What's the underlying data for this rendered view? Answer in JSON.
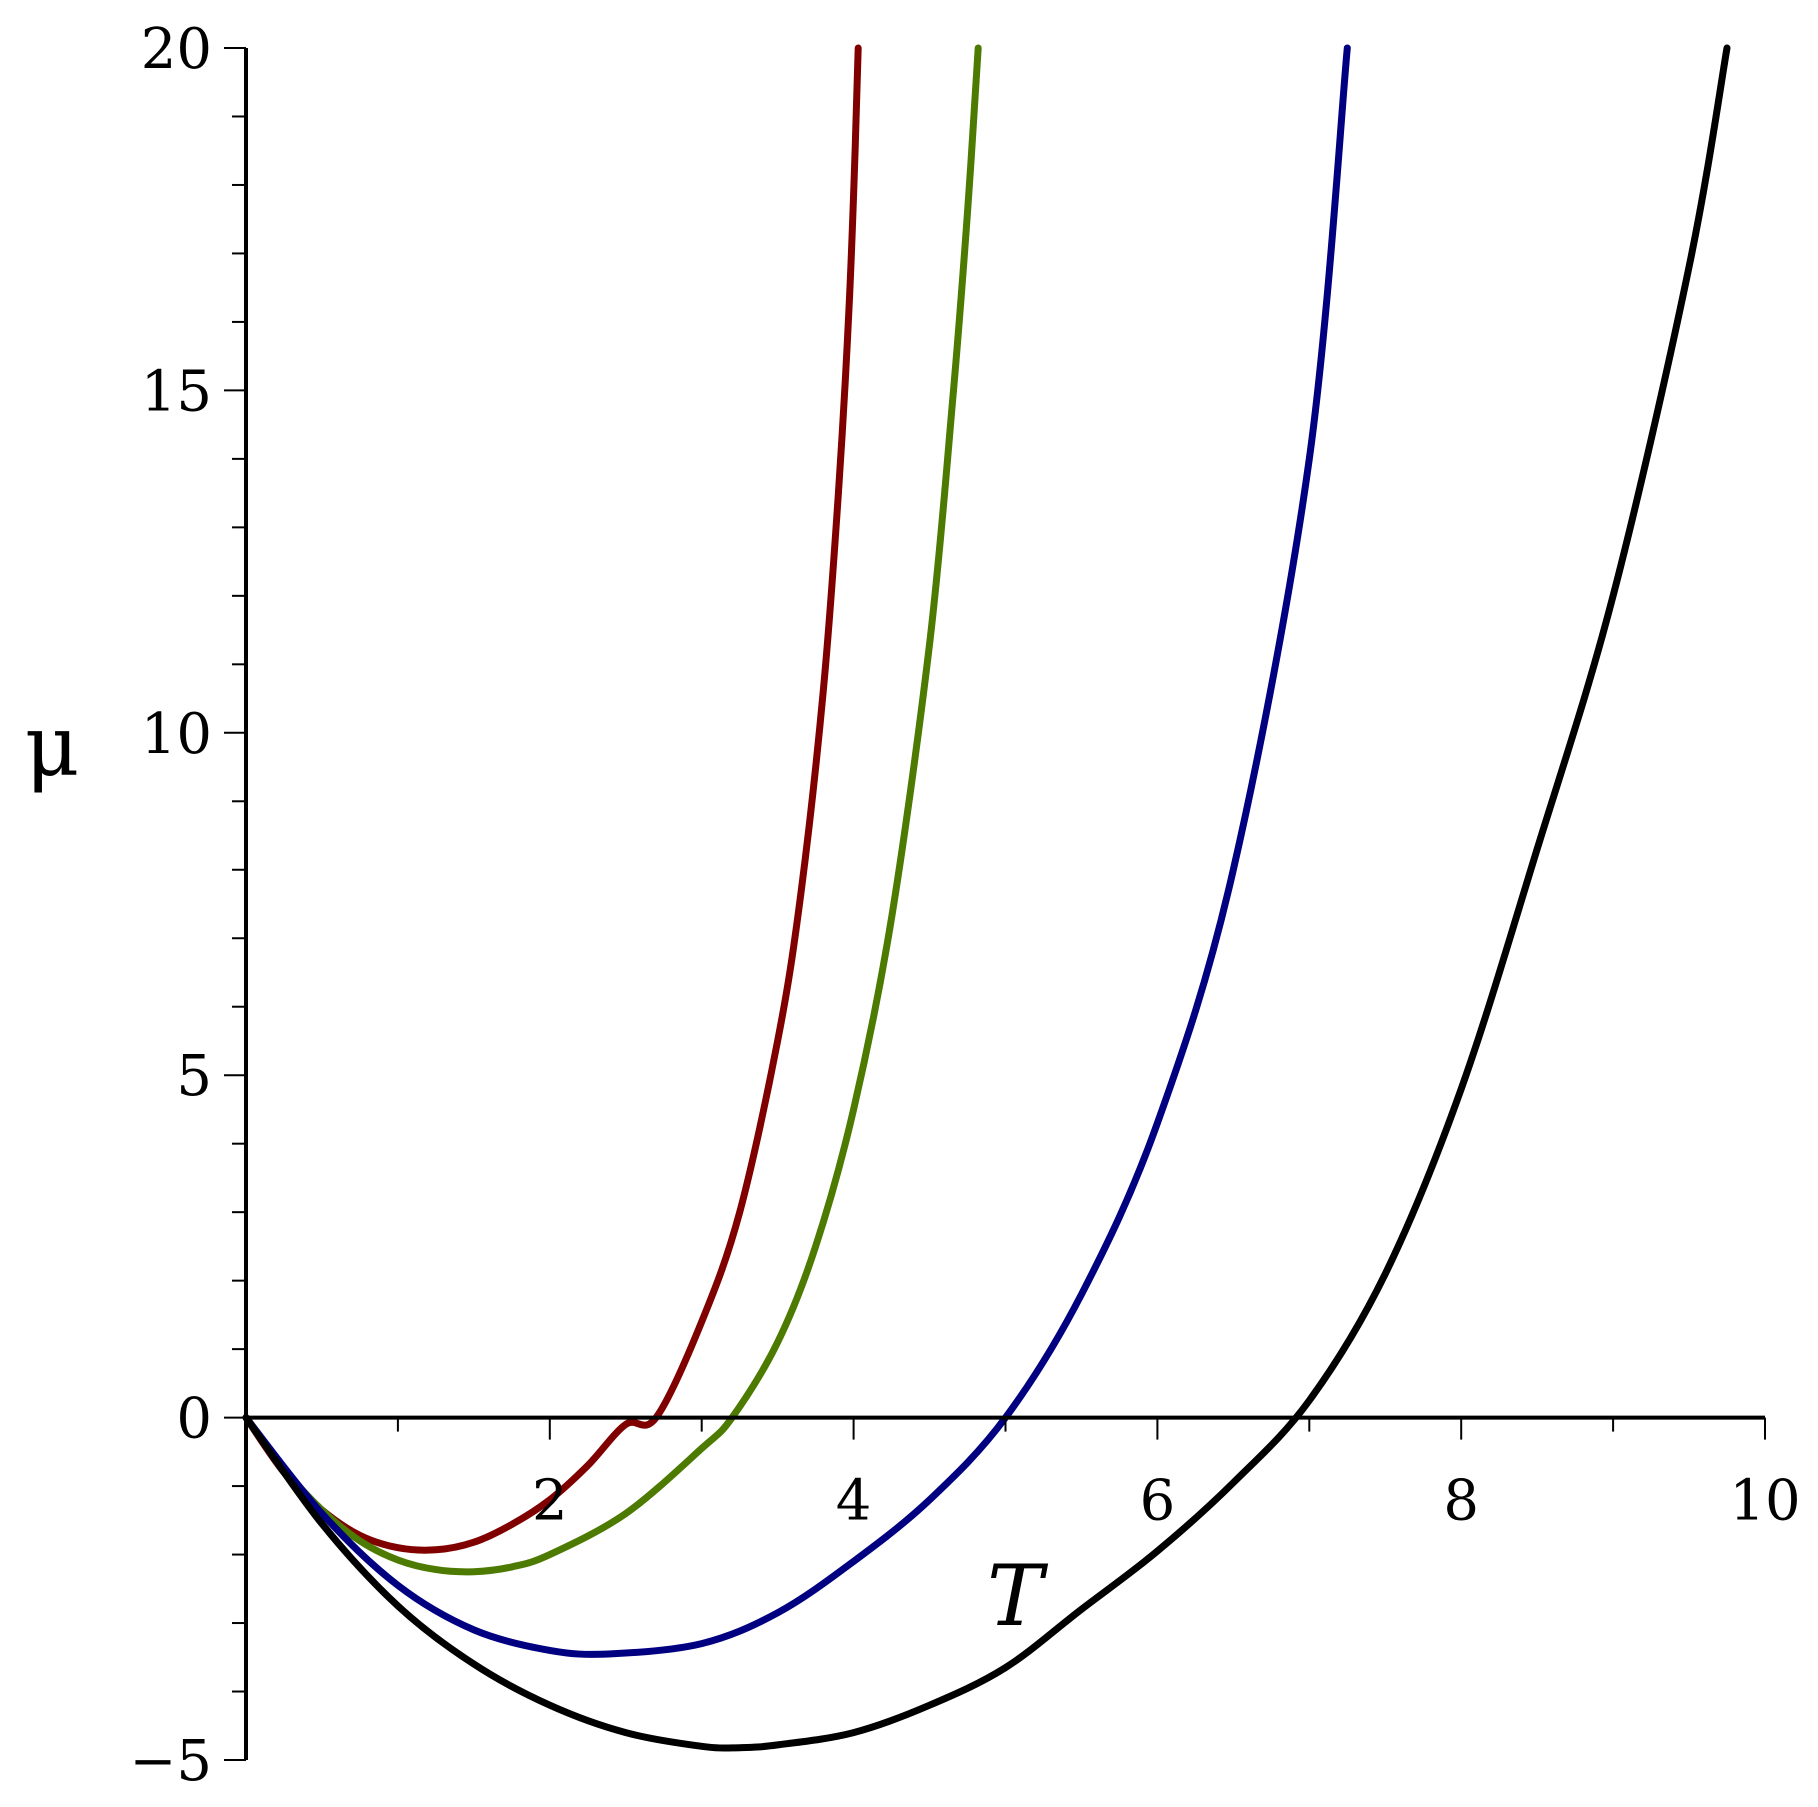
{
  "chart_data": {
    "type": "line",
    "title": "",
    "xlabel": "T",
    "ylabel": "μ",
    "xlim": [
      0,
      10
    ],
    "ylim": [
      -5,
      20
    ],
    "x_ticks": [
      2,
      4,
      6,
      8,
      10
    ],
    "y_ticks": [
      -5,
      0,
      5,
      10,
      15,
      20
    ],
    "x_tick_labels": [
      "2",
      "4",
      "6",
      "8",
      "10"
    ],
    "y_tick_labels": [
      "−5",
      "0",
      "5",
      "10",
      "15",
      "20"
    ],
    "grid": false,
    "legend": "none",
    "series": [
      {
        "color": "#800000",
        "x": [
          0,
          0.25,
          0.5,
          0.75,
          1.0,
          1.25,
          1.5,
          1.75,
          2.0,
          2.25,
          2.5,
          2.7,
          3.0,
          3.25,
          3.5,
          3.65,
          3.8,
          3.9,
          3.97,
          4.01,
          4.03
        ],
        "y": [
          0,
          -0.8,
          -1.35,
          -1.72,
          -1.9,
          -1.93,
          -1.82,
          -1.56,
          -1.2,
          -0.7,
          -0.1,
          0,
          1.4,
          3.0,
          5.5,
          7.6,
          10.6,
          13.5,
          16.2,
          18.5,
          20
        ]
      },
      {
        "color": "#4d7a00",
        "x": [
          0,
          0.25,
          0.5,
          0.75,
          1.0,
          1.25,
          1.5,
          1.75,
          2.0,
          2.5,
          3.0,
          3.2,
          3.5,
          3.75,
          4.0,
          4.25,
          4.5,
          4.65,
          4.75,
          4.82
        ],
        "y": [
          0,
          -0.75,
          -1.35,
          -1.8,
          -2.08,
          -2.22,
          -2.25,
          -2.18,
          -2.0,
          -1.4,
          -0.45,
          0,
          1.1,
          2.5,
          4.5,
          7.3,
          11.3,
          14.8,
          17.6,
          20
        ]
      },
      {
        "color": "#000080",
        "x": [
          0,
          0.5,
          1.0,
          1.5,
          2.0,
          2.4,
          3.0,
          3.5,
          4.0,
          4.5,
          5.0,
          5.5,
          6.0,
          6.5,
          7.0,
          7.25
        ],
        "y": [
          0,
          -1.4,
          -2.45,
          -3.1,
          -3.4,
          -3.45,
          -3.3,
          -2.85,
          -2.1,
          -1.2,
          0,
          1.8,
          4.3,
          8.0,
          14.0,
          20
        ]
      },
      {
        "color": "#000000",
        "x": [
          0,
          0.5,
          1.0,
          1.5,
          2.0,
          2.5,
          3.0,
          3.25,
          3.5,
          4.0,
          4.5,
          5.0,
          5.5,
          6.0,
          6.5,
          7.0,
          7.5,
          8.0,
          8.5,
          9.0,
          9.5,
          9.75
        ],
        "y": [
          0,
          -1.55,
          -2.75,
          -3.6,
          -4.2,
          -4.6,
          -4.8,
          -4.82,
          -4.78,
          -4.6,
          -4.2,
          -3.65,
          -2.8,
          -1.95,
          -0.95,
          0.25,
          2.1,
          4.8,
          8.3,
          12.0,
          16.8,
          20
        ]
      }
    ]
  }
}
